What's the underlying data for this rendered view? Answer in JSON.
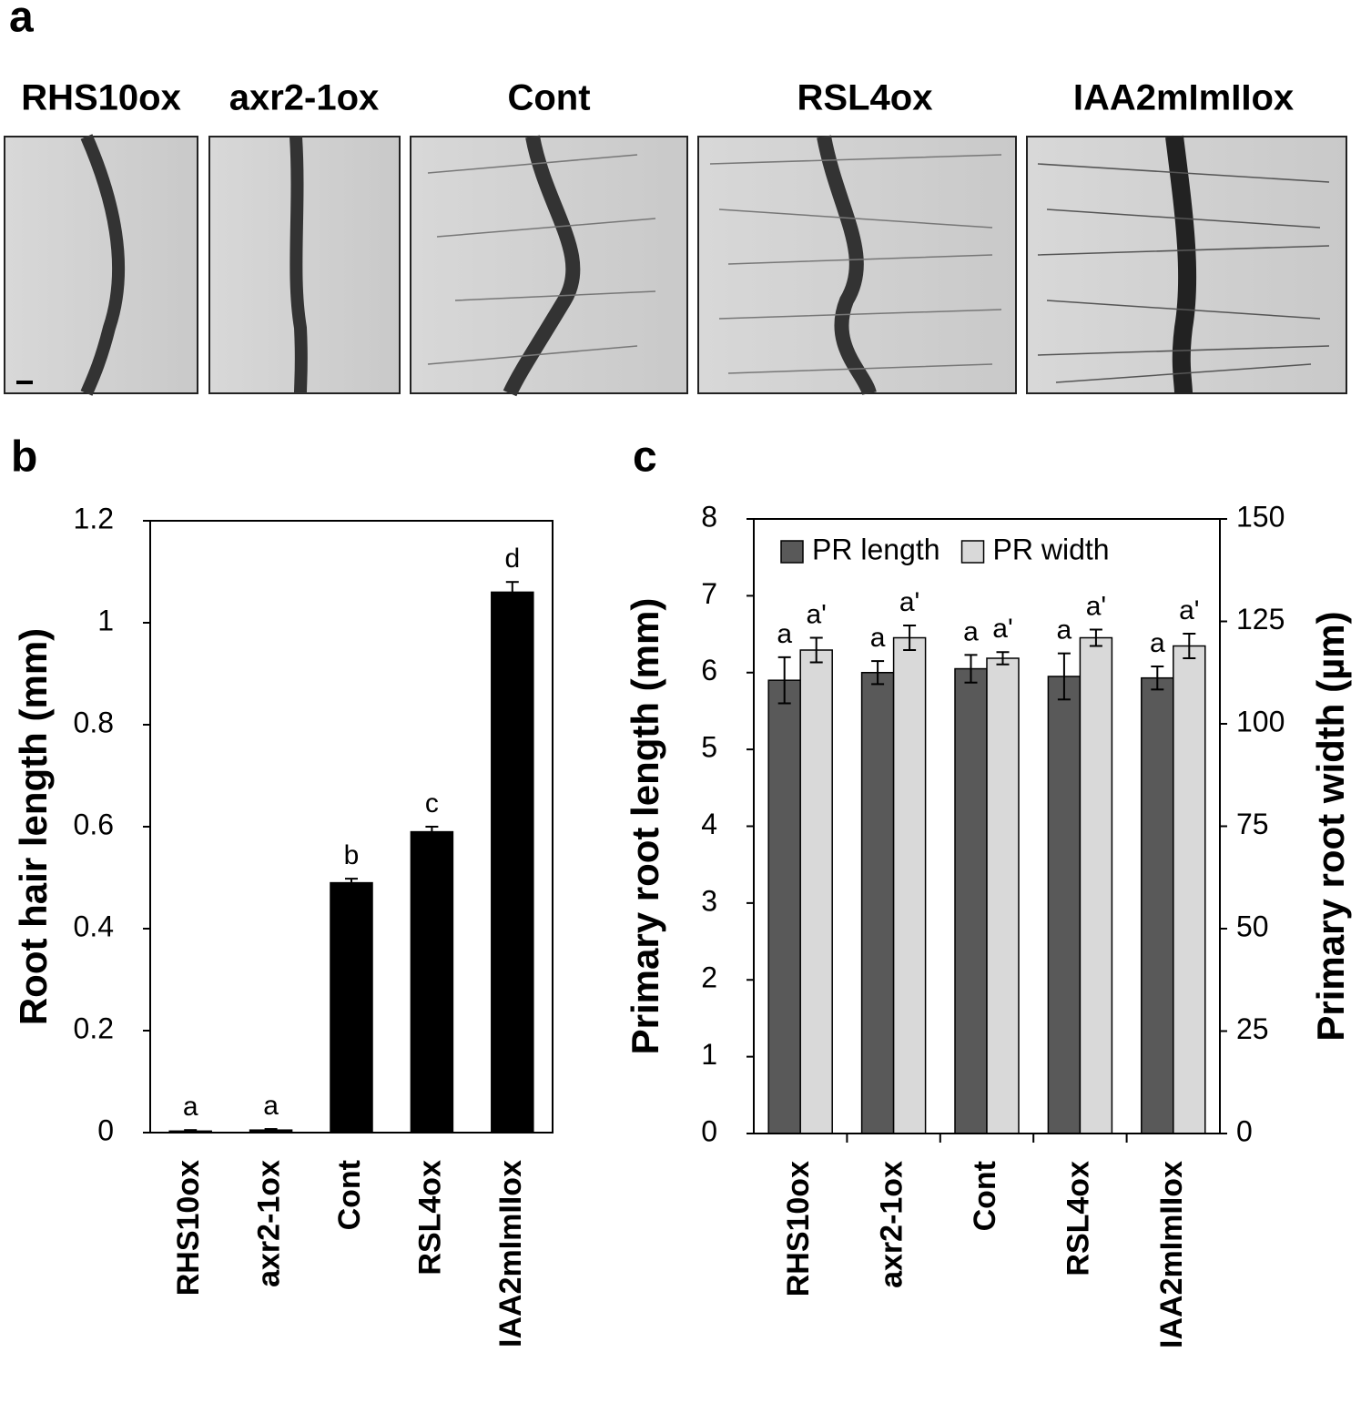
{
  "figure": {
    "panel_label": "a",
    "images": [
      {
        "label": "RHS10ox"
      },
      {
        "label": "axr2-1ox"
      },
      {
        "label": "Cont"
      },
      {
        "label": "RSL4ox"
      },
      {
        "label": "IAA2mImIIox"
      }
    ]
  },
  "chart_data": [
    {
      "type": "bar",
      "panel_label": "b",
      "y_label": "Root hair length (mm)",
      "categories": [
        "RHS10ox",
        "axr2-1ox",
        "Cont",
        "RSL4ox",
        "IAA2mImIIox"
      ],
      "series": [
        {
          "color": "#000000",
          "values": [
            0.003,
            0.005,
            0.49,
            0.59,
            1.06
          ],
          "errors": [
            0.002,
            0.002,
            0.008,
            0.01,
            0.02
          ],
          "annotations": [
            "a",
            "a",
            "b",
            "c",
            "d"
          ]
        }
      ],
      "ylim": [
        0,
        1.2
      ],
      "yticks": [
        0,
        0.2,
        0.4,
        0.6,
        0.8,
        1,
        1.2
      ]
    },
    {
      "type": "bar",
      "panel_label": "c",
      "y_label": "Primary root length (mm)",
      "y2_label": "Primary root width (µm)",
      "categories": [
        "RHS10ox",
        "axr2-1ox",
        "Cont",
        "RSL4ox",
        "IAA2mImIIox"
      ],
      "series": [
        {
          "name": "PR length",
          "color": "#595959",
          "values": [
            5.9,
            6.0,
            6.05,
            5.95,
            5.93
          ],
          "errors": [
            0.3,
            0.15,
            0.18,
            0.3,
            0.15
          ],
          "annotations": [
            "a",
            "a",
            "a",
            "a",
            "a"
          ]
        },
        {
          "name": "PR width",
          "color": "#d9d9d9",
          "axis": "y2",
          "values": [
            118,
            121,
            116,
            121,
            119
          ],
          "errors": [
            3,
            3,
            1.5,
            2,
            3
          ],
          "annotations": [
            "a'",
            "a'",
            "a'",
            "a'",
            "a'"
          ]
        }
      ],
      "ylim": [
        0,
        8
      ],
      "yticks": [
        0,
        1,
        2,
        3,
        4,
        5,
        6,
        7,
        8
      ],
      "y2lim": [
        0,
        150
      ],
      "y2ticks": [
        0,
        25,
        50,
        75,
        100,
        125,
        150
      ],
      "legend": "top"
    }
  ]
}
